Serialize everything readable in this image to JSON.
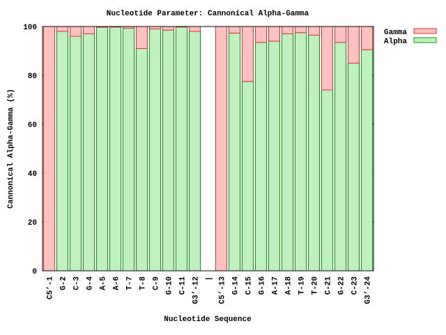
{
  "chart_data": {
    "type": "stacked-bar",
    "title": "Nucleotide Parameter: Cannonical Alpha-Gamma",
    "x_label": "Nucleotide Sequence",
    "y_label": "Cannonical Alpha-Gamma (%)",
    "categories": [
      "C5’-1",
      "G-2",
      "C-3",
      "G-4",
      "A-5",
      "A-6",
      "T-7",
      "T-8",
      "C-9",
      "G-10",
      "C-11",
      "G3’-12",
      "|",
      "C5’-13",
      "G-14",
      "C-15",
      "G-16",
      "A-17",
      "A-18",
      "T-19",
      "T-20",
      "C-21",
      "G-22",
      "C-23",
      "G3’-24"
    ],
    "series": [
      {
        "name": "Gamma",
        "color": "#ffc0c0",
        "stroke": "#e03030",
        "values": [
          100,
          2,
          4,
          3,
          0.3,
          0.2,
          0.7,
          9,
          1,
          1.5,
          0.2,
          2,
          null,
          100,
          2.7,
          22.5,
          6.5,
          6,
          3,
          2.5,
          3.5,
          26,
          6.5,
          15,
          9.5
        ]
      },
      {
        "name": "Alpha",
        "color": "#c0f0c0",
        "stroke": "#00a000",
        "values": [
          0,
          98,
          96,
          97,
          99.7,
          99.8,
          99.3,
          91,
          99,
          98.5,
          99.8,
          98,
          null,
          0,
          97.3,
          77.5,
          93.5,
          94,
          97,
          97.5,
          96.5,
          74,
          93.5,
          85,
          90.5
        ]
      }
    ],
    "ylim": [
      0,
      100
    ],
    "yticks": [
      0,
      20,
      40,
      60,
      80,
      100
    ],
    "legend": "outside-top-right"
  }
}
